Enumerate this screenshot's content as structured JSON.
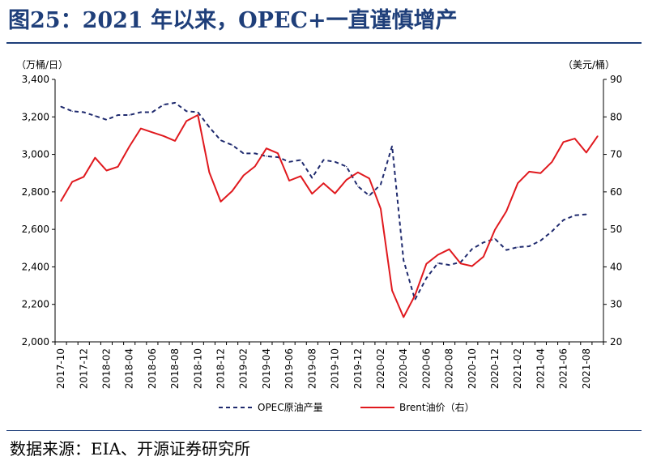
{
  "title": "图25：2021 年以来，OPEC+一直谨慎增产",
  "source": "数据来源：EIA、开源证券研究所",
  "chart_data": {
    "type": "line",
    "y_left_unit": "（万桶/日）",
    "y_right_unit": "（美元/桶）",
    "y_left_lim": [
      2000,
      3400
    ],
    "y_right_lim": [
      20,
      90
    ],
    "y_left_ticks": [
      "2,000",
      "2,200",
      "2,400",
      "2,600",
      "2,800",
      "3,000",
      "3,200",
      "3,400"
    ],
    "y_right_ticks": [
      "20",
      "30",
      "40",
      "50",
      "60",
      "70",
      "80",
      "90"
    ],
    "x_ticks": [
      "2017-10",
      "2017-12",
      "2018-02",
      "2018-04",
      "2018-06",
      "2018-08",
      "2018-10",
      "2018-12",
      "2019-02",
      "2019-04",
      "2019-06",
      "2019-08",
      "2019-10",
      "2019-12",
      "2020-02",
      "2020-04",
      "2020-06",
      "2020-08",
      "2020-10",
      "2020-12",
      "2021-02",
      "2021-04",
      "2021-06",
      "2021-08"
    ],
    "series": [
      {
        "name": "OPEC原油产量",
        "axis": "left",
        "color": "#1f2a6e",
        "style": "dashed",
        "x": [
          "2017-10",
          "2017-11",
          "2017-12",
          "2018-01",
          "2018-02",
          "2018-03",
          "2018-04",
          "2018-05",
          "2018-06",
          "2018-07",
          "2018-08",
          "2018-09",
          "2018-10",
          "2018-11",
          "2018-12",
          "2019-01",
          "2019-02",
          "2019-03",
          "2019-04",
          "2019-05",
          "2019-06",
          "2019-07",
          "2019-08",
          "2019-09",
          "2019-10",
          "2019-11",
          "2019-12",
          "2020-01",
          "2020-02",
          "2020-03",
          "2020-04",
          "2020-05",
          "2020-06",
          "2020-07",
          "2020-08",
          "2020-09",
          "2020-10",
          "2020-11",
          "2020-12",
          "2021-01",
          "2021-02",
          "2021-03",
          "2021-04",
          "2021-05",
          "2021-06",
          "2021-07",
          "2021-08"
        ],
        "values": [
          3255,
          3230,
          3225,
          3205,
          3185,
          3210,
          3210,
          3225,
          3225,
          3265,
          3275,
          3230,
          3225,
          3145,
          3075,
          3050,
          3005,
          3005,
          2990,
          2985,
          2960,
          2970,
          2875,
          2970,
          2960,
          2935,
          2830,
          2780,
          2840,
          3045,
          2435,
          2225,
          2340,
          2420,
          2410,
          2425,
          2495,
          2530,
          2550,
          2490,
          2505,
          2510,
          2540,
          2590,
          2650,
          2675,
          2680
        ]
      },
      {
        "name": "Brent油价（右）",
        "axis": "right",
        "color": "#e0191e",
        "style": "solid",
        "x": [
          "2017-10",
          "2017-11",
          "2017-12",
          "2018-01",
          "2018-02",
          "2018-03",
          "2018-04",
          "2018-05",
          "2018-06",
          "2018-07",
          "2018-08",
          "2018-09",
          "2018-10",
          "2018-11",
          "2018-12",
          "2019-01",
          "2019-02",
          "2019-03",
          "2019-04",
          "2019-05",
          "2019-06",
          "2019-07",
          "2019-08",
          "2019-09",
          "2019-10",
          "2019-11",
          "2019-12",
          "2020-01",
          "2020-02",
          "2020-03",
          "2020-04",
          "2020-05",
          "2020-06",
          "2020-07",
          "2020-08",
          "2020-09",
          "2020-10",
          "2020-11",
          "2020-12",
          "2021-01",
          "2021-02",
          "2021-03",
          "2021-04",
          "2021-05",
          "2021-06",
          "2021-07",
          "2021-08",
          "2021-09"
        ],
        "values": [
          57.5,
          62.7,
          64.0,
          69.1,
          65.7,
          66.7,
          72.1,
          76.9,
          75.9,
          74.9,
          73.6,
          78.9,
          80.5,
          65.2,
          57.4,
          60.2,
          64.4,
          66.8,
          71.6,
          70.3,
          63.0,
          64.2,
          59.5,
          62.3,
          59.6,
          63.2,
          65.2,
          63.6,
          55.5,
          33.7,
          26.6,
          32.4,
          40.8,
          43.2,
          44.7,
          40.9,
          40.2,
          42.7,
          49.9,
          54.8,
          62.3,
          65.4,
          65.0,
          68.0,
          73.3,
          74.2,
          70.5,
          74.9
        ]
      }
    ],
    "legend_position": "bottom",
    "grid": false
  }
}
